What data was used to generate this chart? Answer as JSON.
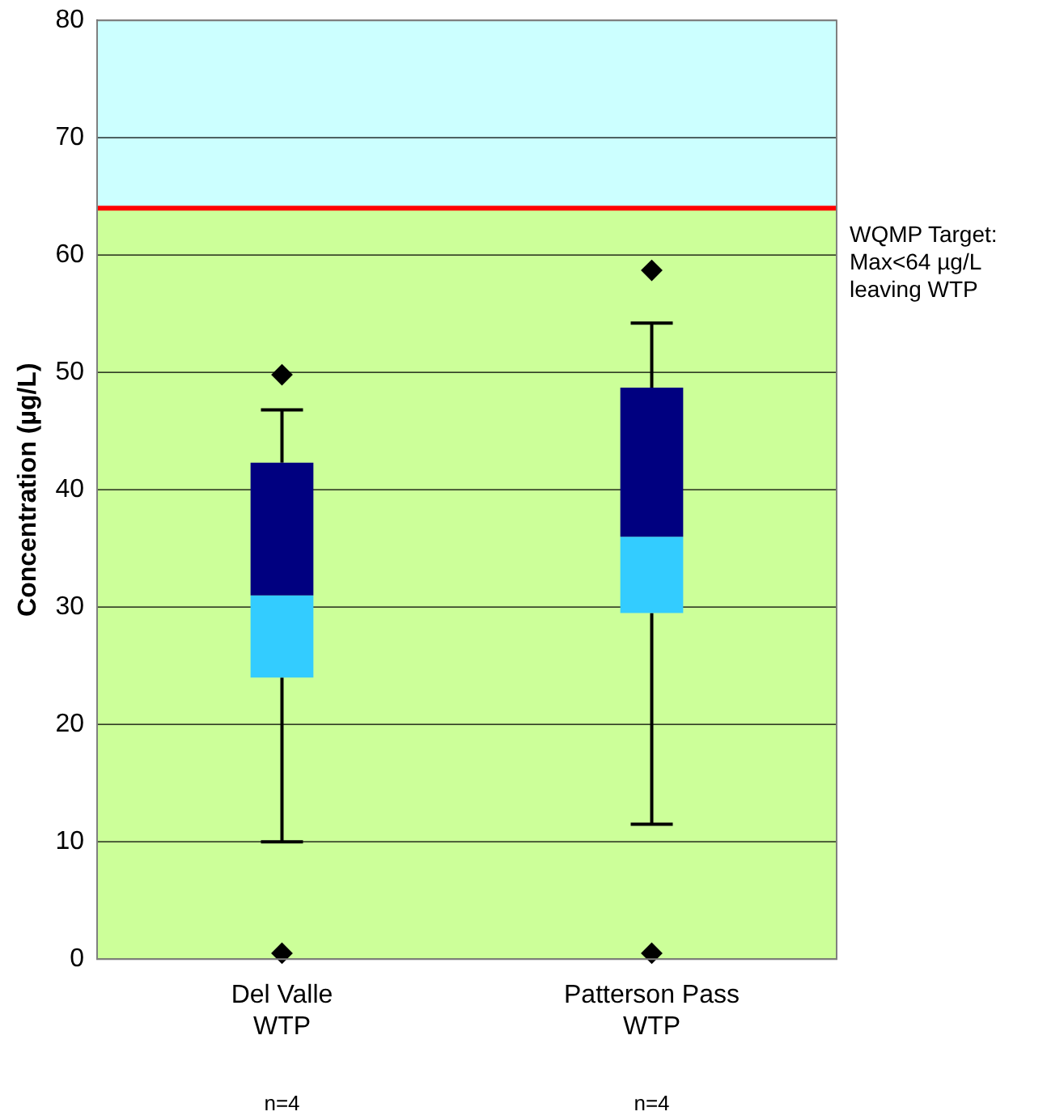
{
  "chart_data": {
    "type": "box",
    "ylabel": "Concentration (µg/L)",
    "categories": [
      "Del Valle WTP",
      "Patterson Pass WTP"
    ],
    "series": [
      {
        "color": "#000080",
        "colors": [
          "#33ccff",
          "#33ccff"
        ],
        "boxes": [
          {
            "low": 10,
            "q1": 24,
            "median": 31,
            "q3": 42.3,
            "high": 46.8,
            "outliers": [
              49.8,
              0.5
            ]
          },
          {
            "low": 11.5,
            "q1": 29.5,
            "median": 36,
            "q3": 48.7,
            "high": 54.2,
            "outliers": [
              58.7,
              0.5
            ]
          }
        ]
      }
    ],
    "marker": "diamond",
    "ylim": [
      0,
      80
    ],
    "yticks": [
      0,
      10,
      20,
      30,
      40,
      50,
      60,
      70,
      80
    ],
    "grid": "y",
    "ref_lines": [
      {
        "axis": "y",
        "value": 64,
        "label": "WQMP Target:\nMax<64 µg/L\nleaving WTP",
        "color": "#ff0000"
      }
    ],
    "bands": [
      {
        "axis": "y",
        "from": 0,
        "to": 64,
        "color": "#ccff99"
      },
      {
        "axis": "y",
        "from": 64,
        "to": 80,
        "color": "#ccffff"
      }
    ],
    "annotations": [
      "n=4",
      "n=4"
    ]
  }
}
